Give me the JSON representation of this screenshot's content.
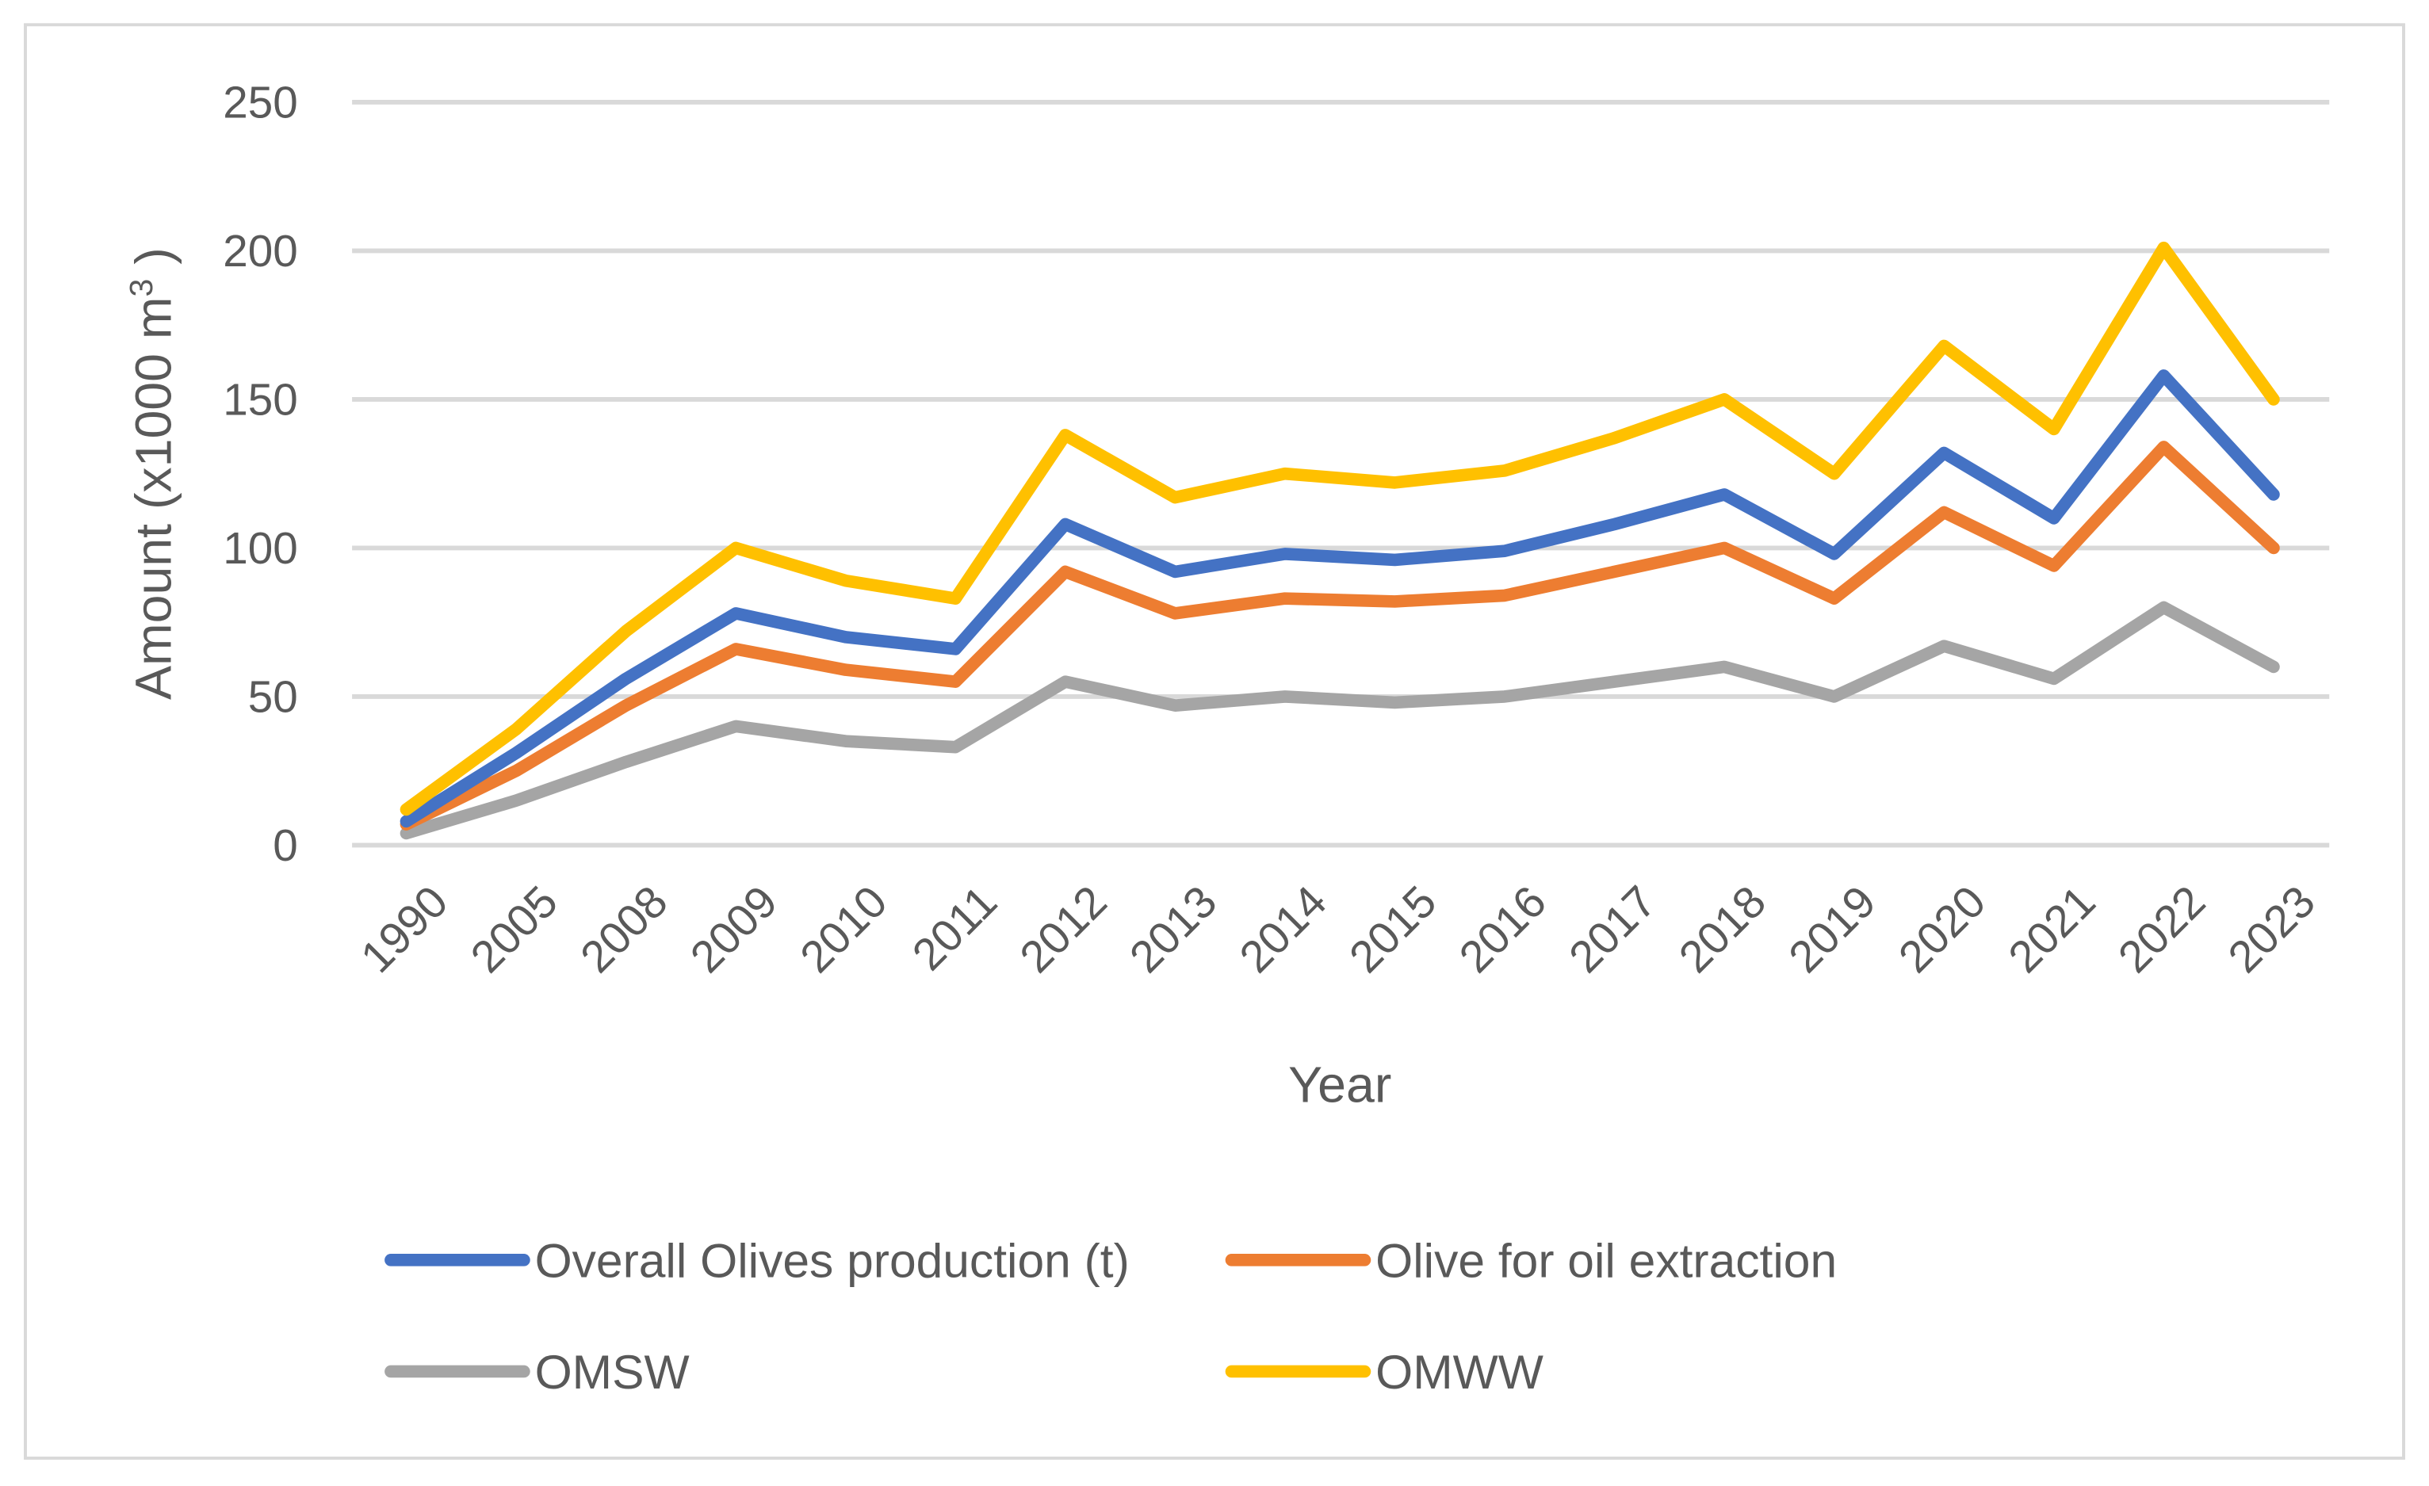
{
  "chart_data": {
    "type": "line",
    "title": "",
    "xlabel": "Year",
    "ylabel": "Amount (x1000 m",
    "ylabel_superscript": "3",
    "ylabel_close": " )",
    "ylim": [
      0,
      250
    ],
    "yticks": [
      "0",
      "50",
      "100",
      "150",
      "200",
      "250"
    ],
    "grid": true,
    "legend_position": "bottom",
    "categories": [
      "1990",
      "2005",
      "2008",
      "2009",
      "2010",
      "2011",
      "2012",
      "2013",
      "2014",
      "2015",
      "2016",
      "2017",
      "2018",
      "2019",
      "2020",
      "2021",
      "2022",
      "2023"
    ],
    "series": [
      {
        "name": "Overall Olives production (t)",
        "color": "#4472C4",
        "values": [
          8,
          31,
          56,
          78,
          70,
          66,
          108,
          92,
          98,
          96,
          99,
          108,
          118,
          98,
          132,
          110,
          158,
          118
        ]
      },
      {
        "name": "Olive for oil extraction",
        "color": "#ED7D31",
        "values": [
          7,
          25,
          47,
          66,
          59,
          55,
          92,
          78,
          83,
          82,
          84,
          92,
          100,
          83,
          112,
          94,
          134,
          100
        ]
      },
      {
        "name": "OMSW",
        "color": "#A5A5A5",
        "values": [
          4,
          15,
          28,
          40,
          35,
          33,
          55,
          47,
          50,
          48,
          50,
          55,
          60,
          50,
          67,
          56,
          80,
          60
        ]
      },
      {
        "name": "OMWW",
        "color": "#FFC000",
        "values": [
          12,
          39,
          72,
          100,
          89,
          83,
          138,
          117,
          125,
          122,
          126,
          137,
          150,
          125,
          168,
          140,
          201,
          150
        ]
      }
    ]
  }
}
